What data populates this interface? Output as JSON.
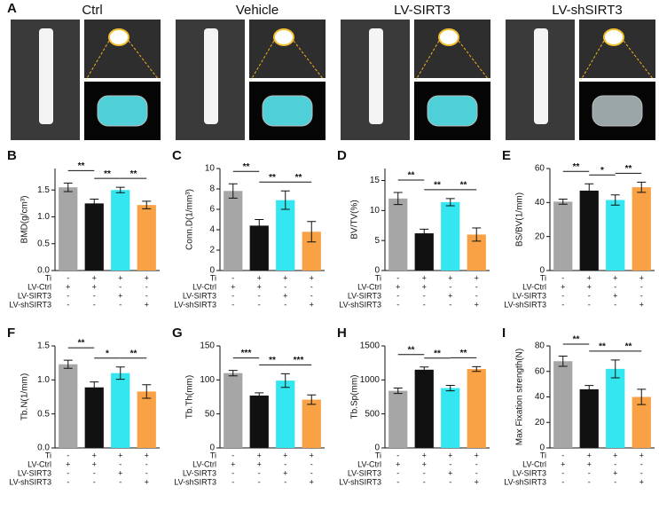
{
  "panel_a": {
    "label": "A",
    "groups": [
      "Ctrl",
      "Vehicle",
      "LV-SIRT3",
      "LV-shSIRT3"
    ]
  },
  "chart_data": [
    {
      "type": "bar",
      "label": "B",
      "y_label": "BMD(g/cm³)",
      "categories": [
        null,
        null,
        null,
        null
      ],
      "values": [
        1.55,
        1.25,
        1.5,
        1.22
      ],
      "errors": [
        0.08,
        0.08,
        0.05,
        0.07
      ],
      "colors": [
        "#a6a6a6",
        "#111111",
        "#33e6f0",
        "#f9a245"
      ],
      "ylim": [
        0,
        1.9
      ],
      "yticks": [
        {
          "value": 0,
          "label": "0.0"
        },
        {
          "value": 0.5,
          "label": "0.5"
        },
        {
          "value": 1,
          "label": "1.0"
        },
        {
          "value": 1.5,
          "label": "1.5"
        }
      ],
      "significance": [
        {
          "from": 0,
          "to": 1,
          "label": "**"
        },
        {
          "from": 1,
          "to": 2,
          "label": "**"
        },
        {
          "from": 2,
          "to": 3,
          "label": "**"
        }
      ],
      "conditions": [
        {
          "name": "Ti",
          "marks": [
            "-",
            "+",
            "+",
            "+"
          ]
        },
        {
          "name": "LV-Ctrl",
          "marks": [
            "+",
            "+",
            "-",
            "-"
          ]
        },
        {
          "name": "LV-SIRT3",
          "marks": [
            "-",
            "-",
            "+",
            "-"
          ]
        },
        {
          "name": "LV-shSIRT3",
          "marks": [
            "-",
            "-",
            "-",
            "+"
          ]
        }
      ]
    },
    {
      "type": "bar",
      "label": "C",
      "y_label": "Conn.D(1/mm³)",
      "categories": [
        null,
        null,
        null,
        null
      ],
      "values": [
        7.8,
        4.4,
        6.9,
        3.8
      ],
      "errors": [
        0.7,
        0.6,
        0.9,
        1.0
      ],
      "colors": [
        "#a6a6a6",
        "#111111",
        "#33e6f0",
        "#f9a245"
      ],
      "ylim": [
        0,
        10
      ],
      "yticks": [
        0,
        2,
        4,
        6,
        8,
        10
      ],
      "significance": [
        {
          "from": 0,
          "to": 1,
          "label": "**"
        },
        {
          "from": 1,
          "to": 2,
          "label": "**"
        },
        {
          "from": 2,
          "to": 3,
          "label": "**"
        }
      ],
      "conditions": [
        {
          "name": "Ti",
          "marks": [
            "-",
            "+",
            "+",
            "+"
          ]
        },
        {
          "name": "LV-Ctrl",
          "marks": [
            "+",
            "+",
            "-",
            "-"
          ]
        },
        {
          "name": "LV-SIRT3",
          "marks": [
            "-",
            "-",
            "+",
            "-"
          ]
        },
        {
          "name": "LV-shSIRT3",
          "marks": [
            "-",
            "-",
            "-",
            "+"
          ]
        }
      ]
    },
    {
      "type": "bar",
      "label": "D",
      "y_label": "BV/TV(%)",
      "categories": [
        null,
        null,
        null,
        null
      ],
      "values": [
        12,
        6.2,
        11.4,
        6.0
      ],
      "errors": [
        1.0,
        0.7,
        0.6,
        1.1
      ],
      "colors": [
        "#a6a6a6",
        "#111111",
        "#33e6f0",
        "#f9a245"
      ],
      "ylim": [
        0,
        17
      ],
      "yticks": [
        0,
        5,
        10,
        15
      ],
      "significance": [
        {
          "from": 0,
          "to": 1,
          "label": "**"
        },
        {
          "from": 1,
          "to": 2,
          "label": "**"
        },
        {
          "from": 2,
          "to": 3,
          "label": "**"
        }
      ],
      "conditions": [
        {
          "name": "Ti",
          "marks": [
            "-",
            "+",
            "+",
            "+"
          ]
        },
        {
          "name": "LV-Ctrl",
          "marks": [
            "+",
            "+",
            "-",
            "-"
          ]
        },
        {
          "name": "LV-SIRT3",
          "marks": [
            "-",
            "-",
            "+",
            "-"
          ]
        },
        {
          "name": "LV-shSIRT3",
          "marks": [
            "-",
            "-",
            "-",
            "+"
          ]
        }
      ]
    },
    {
      "type": "bar",
      "label": "E",
      "y_label": "BS/BV(1/mm)",
      "categories": [
        null,
        null,
        null,
        null
      ],
      "values": [
        40.5,
        47,
        41.5,
        49
      ],
      "errors": [
        1.5,
        4,
        3,
        3
      ],
      "colors": [
        "#a6a6a6",
        "#111111",
        "#33e6f0",
        "#f9a245"
      ],
      "ylim": [
        0,
        60
      ],
      "yticks": [
        0,
        20,
        40,
        60
      ],
      "significance": [
        {
          "from": 0,
          "to": 1,
          "label": "**"
        },
        {
          "from": 1,
          "to": 2,
          "label": "*"
        },
        {
          "from": 2,
          "to": 3,
          "label": "**"
        }
      ],
      "conditions": [
        {
          "name": "Ti",
          "marks": [
            "-",
            "+",
            "+",
            "+"
          ]
        },
        {
          "name": "LV-Ctrl",
          "marks": [
            "+",
            "+",
            "-",
            "-"
          ]
        },
        {
          "name": "LV-SIRT3",
          "marks": [
            "-",
            "-",
            "+",
            "-"
          ]
        },
        {
          "name": "LV-shSIRT3",
          "marks": [
            "-",
            "-",
            "-",
            "+"
          ]
        }
      ]
    },
    {
      "type": "bar",
      "label": "F",
      "y_label": "Tb.N(1/mm)",
      "categories": [
        null,
        null,
        null,
        null
      ],
      "values": [
        1.23,
        0.89,
        1.1,
        0.83
      ],
      "errors": [
        0.06,
        0.08,
        0.09,
        0.1
      ],
      "colors": [
        "#a6a6a6",
        "#111111",
        "#33e6f0",
        "#f9a245"
      ],
      "ylim": [
        0,
        1.5
      ],
      "yticks": [
        {
          "value": 0,
          "label": "0.0"
        },
        {
          "value": 0.5,
          "label": "0.5"
        },
        {
          "value": 1,
          "label": "1.0"
        },
        {
          "value": 1.5,
          "label": "1.5"
        }
      ],
      "significance": [
        {
          "from": 0,
          "to": 1,
          "label": "**"
        },
        {
          "from": 1,
          "to": 2,
          "label": "*"
        },
        {
          "from": 2,
          "to": 3,
          "label": "**"
        }
      ],
      "conditions": [
        {
          "name": "Ti",
          "marks": [
            "-",
            "+",
            "+",
            "+"
          ]
        },
        {
          "name": "LV-Ctrl",
          "marks": [
            "+",
            "+",
            "-",
            "-"
          ]
        },
        {
          "name": "LV-SIRT3",
          "marks": [
            "-",
            "-",
            "+",
            "-"
          ]
        },
        {
          "name": "LV-shSIRT3",
          "marks": [
            "-",
            "-",
            "-",
            "+"
          ]
        }
      ]
    },
    {
      "type": "bar",
      "label": "G",
      "y_label": "Tb.Th(mm)",
      "categories": [
        null,
        null,
        null,
        null
      ],
      "values": [
        110,
        77,
        99,
        71
      ],
      "errors": [
        4,
        4,
        10,
        7
      ],
      "colors": [
        "#a6a6a6",
        "#111111",
        "#33e6f0",
        "#f9a245"
      ],
      "ylim": [
        0,
        150
      ],
      "yticks": [
        0,
        50,
        100,
        150
      ],
      "significance": [
        {
          "from": 0,
          "to": 1,
          "label": "***"
        },
        {
          "from": 1,
          "to": 2,
          "label": "**"
        },
        {
          "from": 2,
          "to": 3,
          "label": "***"
        }
      ],
      "conditions": [
        {
          "name": "Ti",
          "marks": [
            "-",
            "+",
            "+",
            "+"
          ]
        },
        {
          "name": "LV-Ctrl",
          "marks": [
            "+",
            "+",
            "-",
            "-"
          ]
        },
        {
          "name": "LV-SIRT3",
          "marks": [
            "-",
            "-",
            "+",
            "-"
          ]
        },
        {
          "name": "LV-shSIRT3",
          "marks": [
            "-",
            "-",
            "-",
            "+"
          ]
        }
      ]
    },
    {
      "type": "bar",
      "label": "H",
      "y_label": "Tb.Sp(mm)",
      "categories": [
        null,
        null,
        null,
        null
      ],
      "values": [
        840,
        1150,
        880,
        1160
      ],
      "errors": [
        40,
        40,
        40,
        35
      ],
      "colors": [
        "#a6a6a6",
        "#111111",
        "#33e6f0",
        "#f9a245"
      ],
      "ylim": [
        0,
        1500
      ],
      "yticks": [
        0,
        500,
        1000,
        1500
      ],
      "significance": [
        {
          "from": 0,
          "to": 1,
          "label": "**"
        },
        {
          "from": 1,
          "to": 2,
          "label": "**"
        },
        {
          "from": 2,
          "to": 3,
          "label": "**"
        }
      ],
      "conditions": [
        {
          "name": "Ti",
          "marks": [
            "-",
            "+",
            "+",
            "+"
          ]
        },
        {
          "name": "LV-Ctrl",
          "marks": [
            "+",
            "+",
            "-",
            "-"
          ]
        },
        {
          "name": "LV-SIRT3",
          "marks": [
            "-",
            "-",
            "+",
            "-"
          ]
        },
        {
          "name": "LV-shSIRT3",
          "marks": [
            "-",
            "-",
            "-",
            "+"
          ]
        }
      ]
    },
    {
      "type": "bar",
      "label": "I",
      "y_label": "Max Fixation strength(N)",
      "categories": [
        null,
        null,
        null,
        null
      ],
      "values": [
        68,
        46,
        62,
        40
      ],
      "errors": [
        4,
        3,
        7,
        6
      ],
      "colors": [
        "#a6a6a6",
        "#111111",
        "#33e6f0",
        "#f9a245"
      ],
      "ylim": [
        0,
        80
      ],
      "yticks": [
        0,
        20,
        40,
        60,
        80
      ],
      "significance": [
        {
          "from": 0,
          "to": 1,
          "label": "**"
        },
        {
          "from": 1,
          "to": 2,
          "label": "**"
        },
        {
          "from": 2,
          "to": 3,
          "label": "**"
        }
      ],
      "conditions": [
        {
          "name": "Ti",
          "marks": [
            "-",
            "+",
            "+",
            "+"
          ]
        },
        {
          "name": "LV-Ctrl",
          "marks": [
            "+",
            "+",
            "-",
            "-"
          ]
        },
        {
          "name": "LV-SIRT3",
          "marks": [
            "-",
            "-",
            "+",
            "-"
          ]
        },
        {
          "name": "LV-shSIRT3",
          "marks": [
            "-",
            "-",
            "-",
            "+"
          ]
        }
      ]
    }
  ]
}
